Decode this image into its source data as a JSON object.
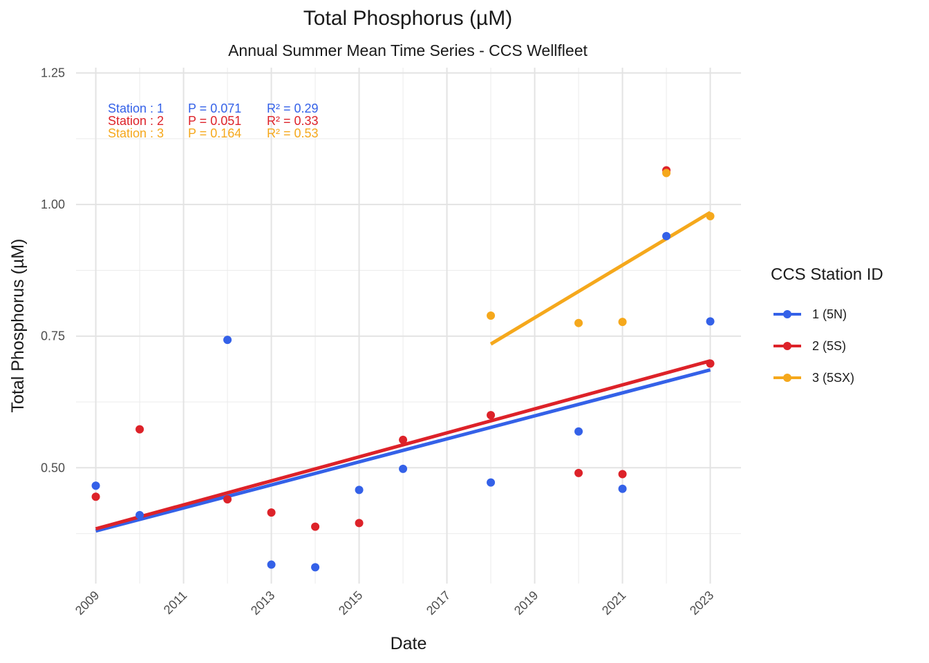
{
  "chart_data": {
    "type": "scatter",
    "title": "Total Phosphorus (µM)",
    "subtitle": "Annual Summer Mean Time Series - CCS Wellfleet",
    "xlabel": "Date",
    "ylabel": "Total Phosphorus (µM)",
    "xlim": [
      2008.55,
      2023.7
    ],
    "ylim": [
      0.28,
      1.26
    ],
    "x_ticks": [
      2009,
      2011,
      2013,
      2015,
      2017,
      2019,
      2021,
      2023
    ],
    "x_tick_labels": [
      "2009",
      "2011",
      "2013",
      "2015",
      "2017",
      "2019",
      "2021",
      "2023"
    ],
    "y_ticks": [
      0.5,
      0.75,
      1.0,
      1.25
    ],
    "y_tick_labels": [
      "0.50",
      "0.75",
      "1.00",
      "1.25"
    ],
    "y_minor_ticks": [
      0.375,
      0.625,
      0.875,
      1.125
    ],
    "x_minor_ticks": [
      2010,
      2012,
      2014,
      2016,
      2018,
      2020,
      2022
    ],
    "grid": true,
    "legend_title": "CCS Station ID",
    "legend_position": "right",
    "series": [
      {
        "name": "1 (5N)",
        "color": "#3461e8",
        "points": [
          [
            2009,
            0.466
          ],
          [
            2010,
            0.41
          ],
          [
            2012,
            0.743
          ],
          [
            2013,
            0.316
          ],
          [
            2014,
            0.311
          ],
          [
            2015,
            0.458
          ],
          [
            2016,
            0.498
          ],
          [
            2018,
            0.472
          ],
          [
            2020,
            0.569
          ],
          [
            2021,
            0.46
          ],
          [
            2022,
            0.94
          ],
          [
            2023,
            0.778
          ]
        ],
        "trend": [
          [
            2009,
            0.38
          ],
          [
            2023,
            0.686
          ]
        ],
        "stat": {
          "label": "Station : 1",
          "p": "P = 0.071",
          "r2": "R² = 0.29"
        }
      },
      {
        "name": "2 (5S)",
        "color": "#dd2229",
        "points": [
          [
            2009,
            0.445
          ],
          [
            2010,
            0.573
          ],
          [
            2012,
            0.44
          ],
          [
            2013,
            0.415
          ],
          [
            2014,
            0.388
          ],
          [
            2015,
            0.395
          ],
          [
            2016,
            0.553
          ],
          [
            2018,
            0.6
          ],
          [
            2020,
            0.49
          ],
          [
            2021,
            0.488
          ],
          [
            2022,
            1.065
          ],
          [
            2023,
            0.698
          ]
        ],
        "trend": [
          [
            2009,
            0.384
          ],
          [
            2023,
            0.703
          ]
        ],
        "stat": {
          "label": "Station : 2",
          "p": "P = 0.051",
          "r2": "R² = 0.33"
        }
      },
      {
        "name": "3 (5SX)",
        "color": "#f5a81c",
        "points": [
          [
            2018,
            0.789
          ],
          [
            2020,
            0.775
          ],
          [
            2021,
            0.777
          ],
          [
            2022,
            1.06
          ],
          [
            2023,
            0.978
          ]
        ],
        "trend": [
          [
            2018,
            0.735
          ],
          [
            2023,
            0.985
          ]
        ],
        "stat": {
          "label": "Station : 3",
          "p": "P = 0.164",
          "r2": "R² = 0.53"
        }
      }
    ]
  }
}
